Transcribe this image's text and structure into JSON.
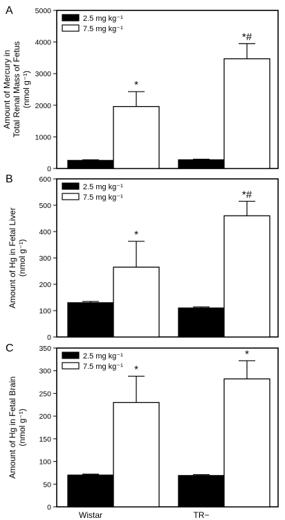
{
  "figure": {
    "x_categories": [
      "Wistar",
      "TR−"
    ],
    "legend": [
      "2.5 mg kg⁻¹",
      "7.5 mg kg⁻¹"
    ],
    "colors": {
      "low_dose": "#000000",
      "high_dose": "#ffffff",
      "stroke": "#000000"
    }
  },
  "chart_data": [
    {
      "panel": "A",
      "type": "bar",
      "categories": [
        "Wistar",
        "TR−"
      ],
      "ylabel_lines": [
        "Amount of Mercury in",
        "Total Renal Mass of Fetus",
        "(nmol g⁻¹)"
      ],
      "ylim": [
        0,
        5000
      ],
      "yticks": [
        0,
        1000,
        2000,
        3000,
        4000,
        5000
      ],
      "legend_position": "top-left",
      "series": [
        {
          "name": "2.5 mg kg⁻¹",
          "values": [
            255,
            275
          ],
          "errors": [
            20,
            20
          ],
          "markers": [
            "",
            ""
          ]
        },
        {
          "name": "7.5 mg kg⁻¹",
          "values": [
            1960,
            3470
          ],
          "errors": [
            470,
            480
          ],
          "markers": [
            "*",
            "*#"
          ]
        }
      ]
    },
    {
      "panel": "B",
      "type": "bar",
      "categories": [
        "Wistar",
        "TR−"
      ],
      "ylabel_lines": [
        "Amount of Hg in Fetal Liver",
        "(nmol g⁻¹)"
      ],
      "ylim": [
        0,
        600
      ],
      "yticks": [
        0,
        100,
        200,
        300,
        400,
        500,
        600
      ],
      "legend_position": "top-left",
      "series": [
        {
          "name": "2.5 mg kg⁻¹",
          "values": [
            130,
            110
          ],
          "errors": [
            5,
            4
          ],
          "markers": [
            "",
            ""
          ]
        },
        {
          "name": "7.5 mg kg⁻¹",
          "values": [
            265,
            460
          ],
          "errors": [
            98,
            55
          ],
          "markers": [
            "*",
            "*#"
          ]
        }
      ]
    },
    {
      "panel": "C",
      "type": "bar",
      "categories": [
        "Wistar",
        "TR−"
      ],
      "ylabel_lines": [
        "Amount of Hg in Fetal Brain",
        "(nmol g⁻¹)"
      ],
      "ylim": [
        0,
        350
      ],
      "yticks": [
        0,
        50,
        100,
        150,
        200,
        250,
        300,
        350
      ],
      "legend_position": "top-left",
      "series": [
        {
          "name": "2.5 mg kg⁻¹",
          "values": [
            70,
            69
          ],
          "errors": [
            2,
            2
          ],
          "markers": [
            "",
            ""
          ]
        },
        {
          "name": "7.5 mg kg⁻¹",
          "values": [
            230,
            282
          ],
          "errors": [
            58,
            40
          ],
          "markers": [
            "*",
            "*"
          ]
        }
      ]
    }
  ]
}
